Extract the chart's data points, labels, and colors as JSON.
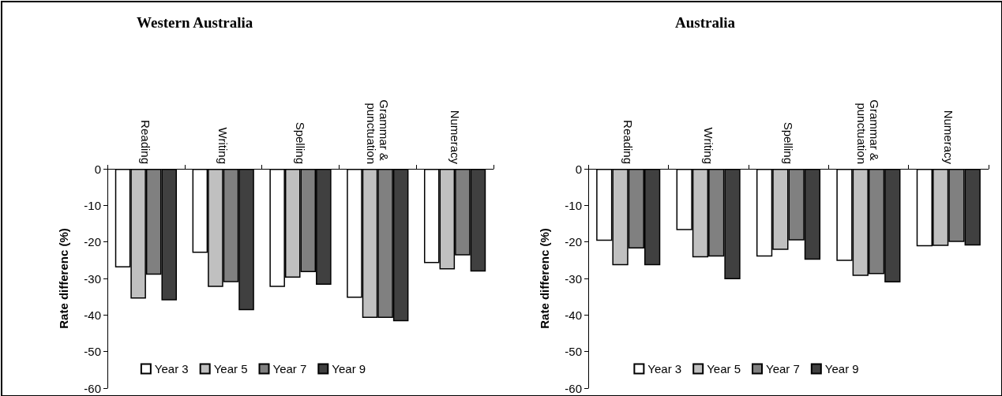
{
  "chart_data": [
    {
      "type": "bar",
      "title": "Western Australia",
      "ylabel": "Rate differenc (%)",
      "categories": [
        "Reading",
        "Writing",
        "Spelling",
        "Grammar & punctuation",
        "Numeracy"
      ],
      "ylim": [
        -60,
        0
      ],
      "yticks": [
        -60,
        -50,
        -40,
        -30,
        -20,
        -10,
        0
      ],
      "grid": false,
      "legend": "bottom",
      "series": [
        {
          "name": "Year 3",
          "color": "#ffffff",
          "values": [
            -27,
            -23,
            -32.3,
            -35.3,
            -25.8
          ]
        },
        {
          "name": "Year 5",
          "color": "#c0c0c0",
          "values": [
            -35.5,
            -32.3,
            -29.8,
            -40.8,
            -27.5
          ]
        },
        {
          "name": "Year 7",
          "color": "#808080",
          "values": [
            -29,
            -31,
            -28.3,
            -40.8,
            -23.7
          ]
        },
        {
          "name": "Year 9",
          "color": "#404040",
          "values": [
            -36,
            -38.7,
            -31.7,
            -41.7,
            -28.1
          ]
        }
      ]
    },
    {
      "type": "bar",
      "title": "Australia",
      "ylabel": "Rate differenc (%)",
      "categories": [
        "Reading",
        "Writing",
        "Spelling",
        "Grammar & punctuation",
        "Numeracy"
      ],
      "ylim": [
        -60,
        0
      ],
      "yticks": [
        -60,
        -50,
        -40,
        -30,
        -20,
        -10,
        0
      ],
      "grid": false,
      "legend": "bottom",
      "series": [
        {
          "name": "Year 3",
          "color": "#ffffff",
          "values": [
            -19.7,
            -16.8,
            -24,
            -25.2,
            -21.2
          ]
        },
        {
          "name": "Year 5",
          "color": "#c0c0c0",
          "values": [
            -26.4,
            -24.2,
            -22.2,
            -29.3,
            -21.1
          ]
        },
        {
          "name": "Year 7",
          "color": "#808080",
          "values": [
            -21.8,
            -24,
            -19.6,
            -28.8,
            -20
          ]
        },
        {
          "name": "Year 9",
          "color": "#404040",
          "values": [
            -26.4,
            -30.2,
            -24.9,
            -31.1,
            -21
          ]
        }
      ]
    }
  ]
}
